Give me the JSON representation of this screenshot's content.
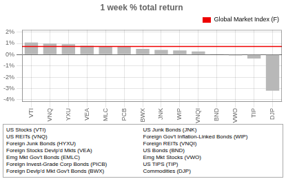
{
  "chart_data": {
    "type": "bar",
    "title": "1 week % total return",
    "categories": [
      "VTI",
      "VNQ",
      "YXU",
      "VEA",
      "MLC",
      "PCB",
      "BWX",
      "JNK",
      "WIP",
      "VNQI",
      "BND",
      "VWO",
      "TIP",
      "DJP"
    ],
    "values": [
      1.08,
      0.99,
      0.93,
      0.78,
      0.75,
      0.72,
      0.51,
      0.42,
      0.38,
      0.28,
      0.05,
      -0.07,
      -0.35,
      -3.2
    ],
    "color": "#b8b8b8",
    "ylim": [
      -4.2,
      2.2
    ],
    "yticks": [
      {
        "value": -4,
        "label": "-4%"
      },
      {
        "value": -3,
        "label": "-3%"
      },
      {
        "value": -2,
        "label": "-2%"
      },
      {
        "value": -1,
        "label": "-1%"
      },
      {
        "value": 0,
        "label": "0%"
      },
      {
        "value": 1,
        "label": "1%"
      },
      {
        "value": 2,
        "label": "2%"
      }
    ],
    "grid": true,
    "legend": "upper right",
    "reference_line": {
      "name": "Global Market Index (F)",
      "value": 0.72,
      "color": "#ee0000"
    },
    "annotations": {
      "left": [
        "US Stocks (VTI)",
        "US REITs (VNQ)",
        "Foreign Junk Bonds (HYXU)",
        "Foreign Stocks Devlp'd Mkts (VEA)",
        "Emg Mkt Gov't Bonds (EMLC)",
        "Foreign Invest-Grade Corp Bonds (PICB)",
        "Foreign Devlp'd Mkt Gov't Bonds (BWX)"
      ],
      "right": [
        "US Junk Bonds (JNK)",
        "Foreign Gov't Inflation-Linked Bonds (WIP)",
        "Foreign REITs (VNQI)",
        "US Bonds (BND)",
        "Emg Mkt Stocks (VWO)",
        "US TIPS (TIP)",
        "Commodities (DJP)"
      ]
    }
  }
}
